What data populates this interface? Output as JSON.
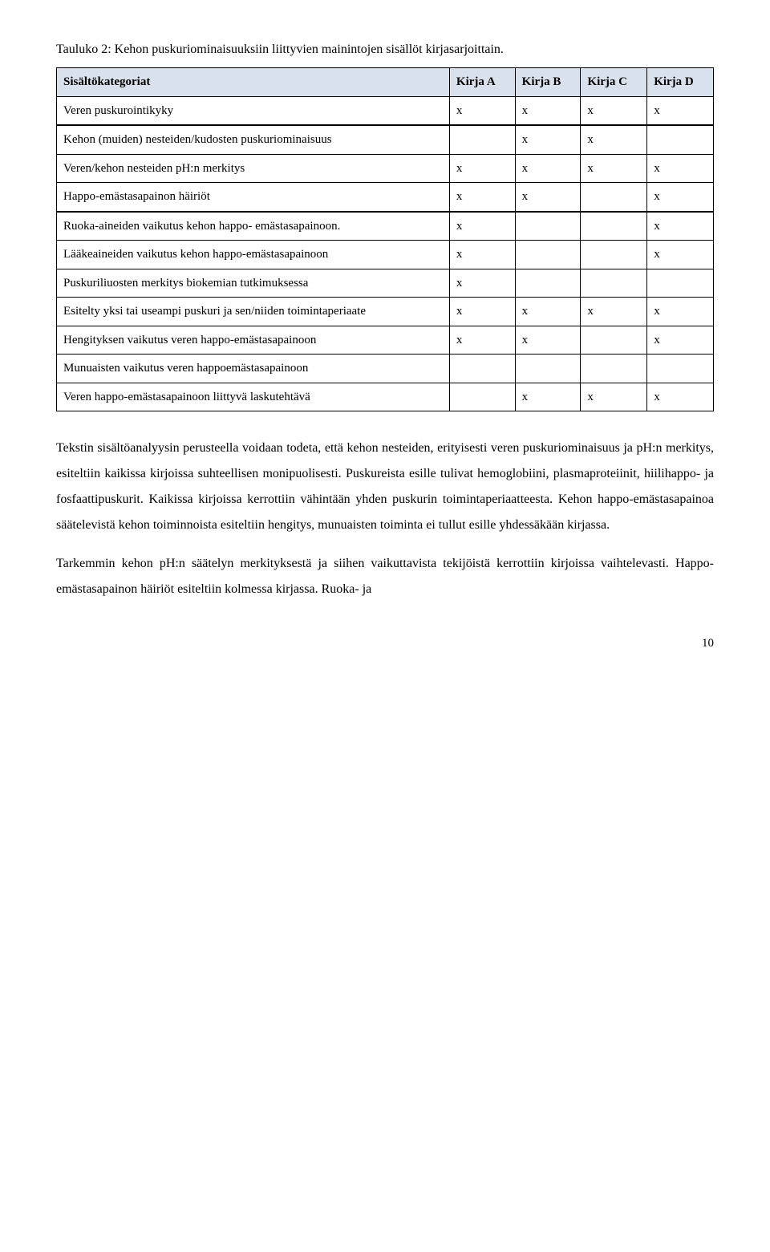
{
  "caption": "Tauluko 2: Kehon puskuriominaisuuksiin liittyvien mainintojen sisällöt kirjasarjoittain.",
  "columns": [
    "Sisältökategoriat",
    "Kirja A",
    "Kirja B",
    "Kirja C",
    "Kirja D"
  ],
  "groups": [
    {
      "rows": [
        {
          "label": "Veren puskurointikyky",
          "cells": [
            "x",
            "x",
            "x",
            "x"
          ]
        }
      ]
    },
    {
      "rows": [
        {
          "label": "Kehon (muiden) nesteiden/kudosten puskuriominaisuus",
          "cells": [
            "",
            "x",
            "x",
            ""
          ]
        },
        {
          "label": "Veren/kehon nesteiden pH:n merkitys",
          "cells": [
            "x",
            "x",
            "x",
            "x"
          ]
        },
        {
          "label": "Happo-emästasapainon häiriöt",
          "cells": [
            "x",
            "x",
            "",
            "x"
          ]
        }
      ]
    },
    {
      "rows": [
        {
          "label": "Ruoka-aineiden vaikutus kehon happo- emästasapainoon.",
          "cells": [
            "x",
            "",
            "",
            "x"
          ]
        },
        {
          "label": "Lääkeaineiden vaikutus kehon happo-emästasapainoon",
          "cells": [
            "x",
            "",
            "",
            "x"
          ]
        },
        {
          "label": "Puskuriliuosten merkitys biokemian tutkimuksessa",
          "cells": [
            "x",
            "",
            "",
            ""
          ]
        },
        {
          "label": "Esitelty yksi tai useampi puskuri ja sen/niiden toimintaperiaate",
          "cells": [
            "x",
            "x",
            "x",
            "x"
          ]
        },
        {
          "label": "Hengityksen vaikutus veren happo-emästasapainoon",
          "cells": [
            "x",
            "x",
            "",
            "x"
          ]
        },
        {
          "label": "Munuaisten vaikutus veren happoemästasapainoon",
          "cells": [
            "",
            "",
            "",
            ""
          ]
        },
        {
          "label": "Veren happo-emästasapainoon liittyvä laskutehtävä",
          "cells": [
            "",
            "x",
            "x",
            "x"
          ]
        }
      ]
    }
  ],
  "para1": "Tekstin sisältöanalyysin perusteella voidaan todeta, että kehon nesteiden, erityisesti veren puskuriominaisuus ja pH:n merkitys, esiteltiin kaikissa kirjoissa suhteellisen monipuolisesti. Puskureista esille tulivat hemoglobiini, plasmaproteiinit, hiilihappo- ja fosfaattipuskurit. Kaikissa kirjoissa kerrottiin vähintään yhden puskurin toimintaperiaatteesta. Kehon happo-emästasapainoa säätelevistä kehon toiminnoista esiteltiin hengitys, munuaisten toiminta ei tullut esille yhdessäkään kirjassa.",
  "para2": "Tarkemmin kehon pH:n säätelyn merkityksestä ja siihen vaikuttavista tekijöistä kerrottiin kirjoissa vaihtelevasti. Happo-emästasapainon häiriöt esiteltiin kolmessa kirjassa. Ruoka- ja",
  "pagenum": "10"
}
